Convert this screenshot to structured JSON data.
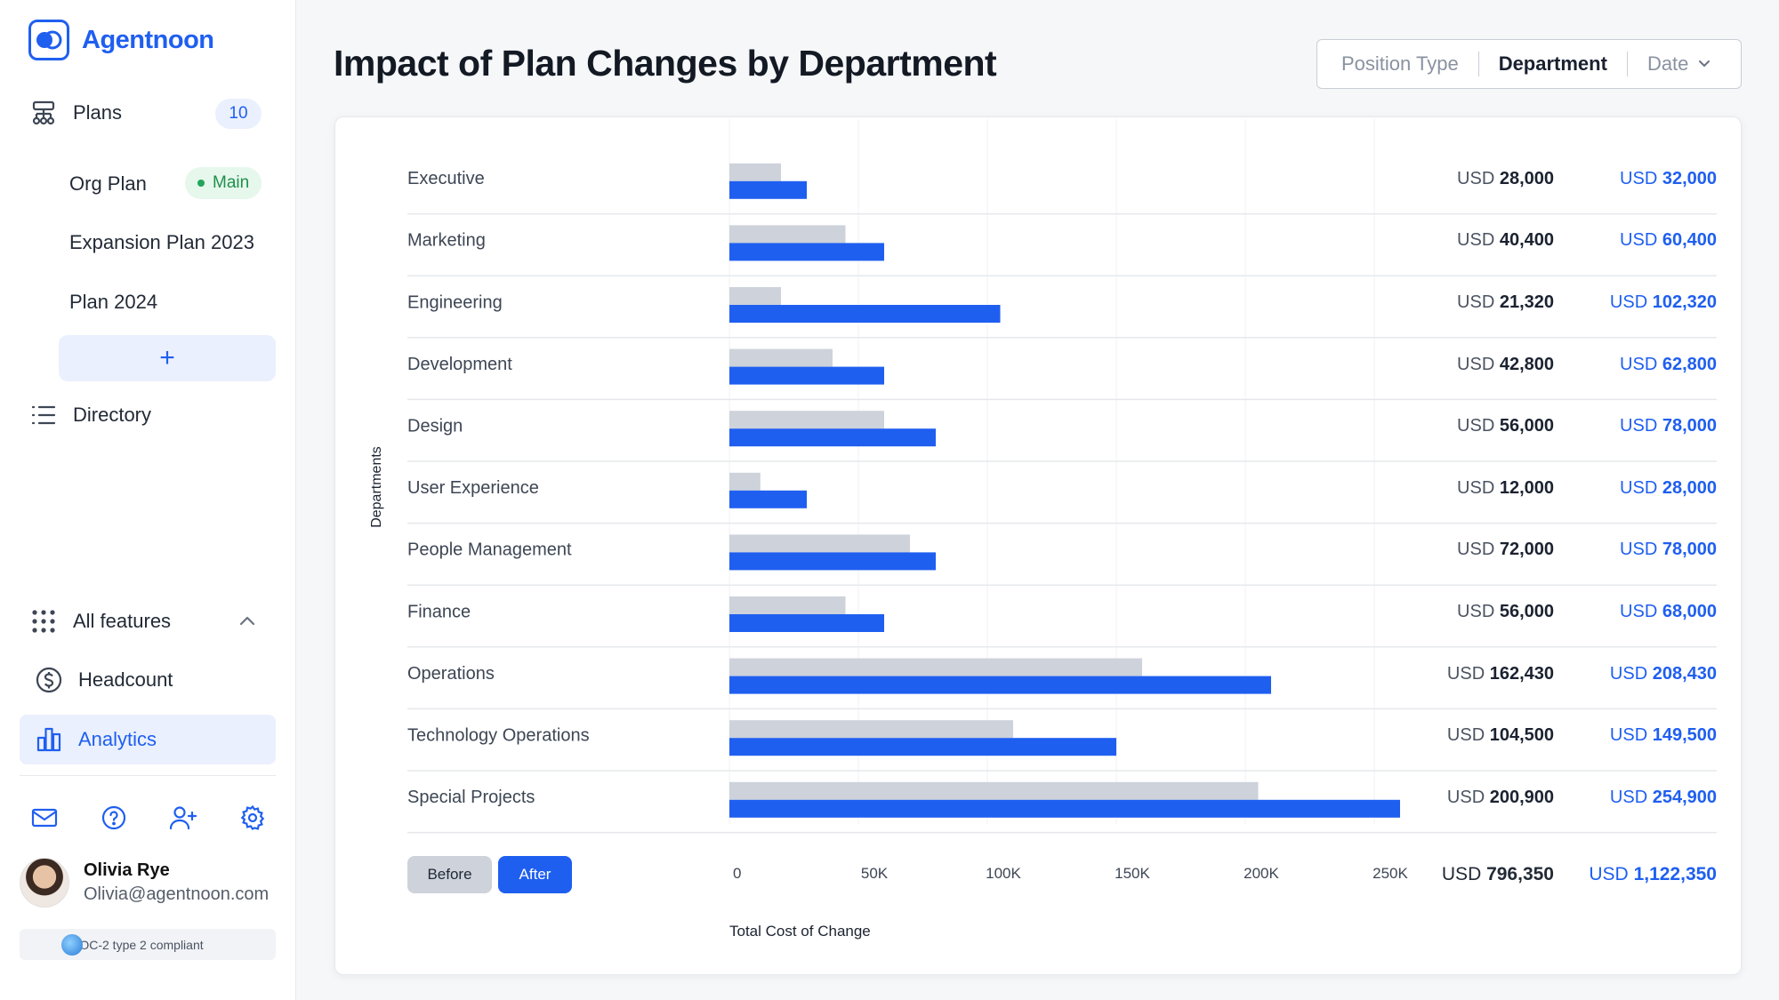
{
  "app": {
    "name": "Agentnoon"
  },
  "sidebar": {
    "plans_label": "Plans",
    "plans_count": "10",
    "plans": [
      {
        "label": "Org Plan",
        "badge": "Main"
      },
      {
        "label": "Expansion Plan 2023"
      },
      {
        "label": "Plan 2024"
      }
    ],
    "add_label": "+",
    "directory_label": "Directory",
    "all_features_label": "All features",
    "headcount_label": "Headcount",
    "analytics_label": "Analytics",
    "user": {
      "name": "Olivia Rye",
      "email": "Olivia@agentnoon.com"
    },
    "compliance": "SOC-2 type 2 compliant"
  },
  "header": {
    "title": "Impact of Plan Changes by Department",
    "filters": [
      "Position Type",
      "Department",
      "Date"
    ],
    "active_filter": "Department"
  },
  "chart_data": {
    "type": "bar",
    "orientation": "horizontal",
    "ylabel": "Departments",
    "xlabel": "Total Cost of Change",
    "xlim": [
      0,
      250000
    ],
    "xticks": [
      "0",
      "50K",
      "100K",
      "150K",
      "200K",
      "250K"
    ],
    "categories": [
      "Executive",
      "Marketing",
      "Engineering",
      "Development",
      "Design",
      "User Experience",
      "People Management",
      "Finance",
      "Operations",
      "Technology Operations",
      "Special Projects"
    ],
    "series": [
      {
        "name": "Before",
        "color": "#cdd2db",
        "values": [
          20000,
          45000,
          20000,
          40000,
          60000,
          12000,
          70000,
          45000,
          160000,
          110000,
          205000
        ]
      },
      {
        "name": "After",
        "color": "#1f5ff0",
        "values": [
          30000,
          60000,
          105000,
          60000,
          80000,
          30000,
          80000,
          60000,
          210000,
          150000,
          260000
        ]
      }
    ],
    "before_labels": [
      {
        "cur": "USD",
        "num": "28,000"
      },
      {
        "cur": "USD",
        "num": "40,400"
      },
      {
        "cur": "USD",
        "num": "21,320"
      },
      {
        "cur": "USD",
        "num": "42,800"
      },
      {
        "cur": "USD",
        "num": "56,000"
      },
      {
        "cur": "USD",
        "num": "12,000"
      },
      {
        "cur": "USD",
        "num": "72,000"
      },
      {
        "cur": "USD",
        "num": "56,000"
      },
      {
        "cur": "USD",
        "num": "162,430"
      },
      {
        "cur": "USD",
        "num": "104,500"
      },
      {
        "cur": "USD",
        "num": "200,900"
      }
    ],
    "after_labels": [
      {
        "cur": "USD",
        "num": "32,000"
      },
      {
        "cur": "USD",
        "num": "60,400"
      },
      {
        "cur": "USD",
        "num": "102,320"
      },
      {
        "cur": "USD",
        "num": "62,800"
      },
      {
        "cur": "USD",
        "num": "78,000"
      },
      {
        "cur": "USD",
        "num": "28,000"
      },
      {
        "cur": "USD",
        "num": "78,000"
      },
      {
        "cur": "USD",
        "num": "68,000"
      },
      {
        "cur": "USD",
        "num": "208,430"
      },
      {
        "cur": "USD",
        "num": "149,500"
      },
      {
        "cur": "USD",
        "num": "254,900"
      }
    ],
    "totals": {
      "before_cur": "USD",
      "before": "796,350",
      "after_cur": "USD",
      "after": "1,122,350"
    },
    "legend": [
      "Before",
      "After"
    ]
  }
}
